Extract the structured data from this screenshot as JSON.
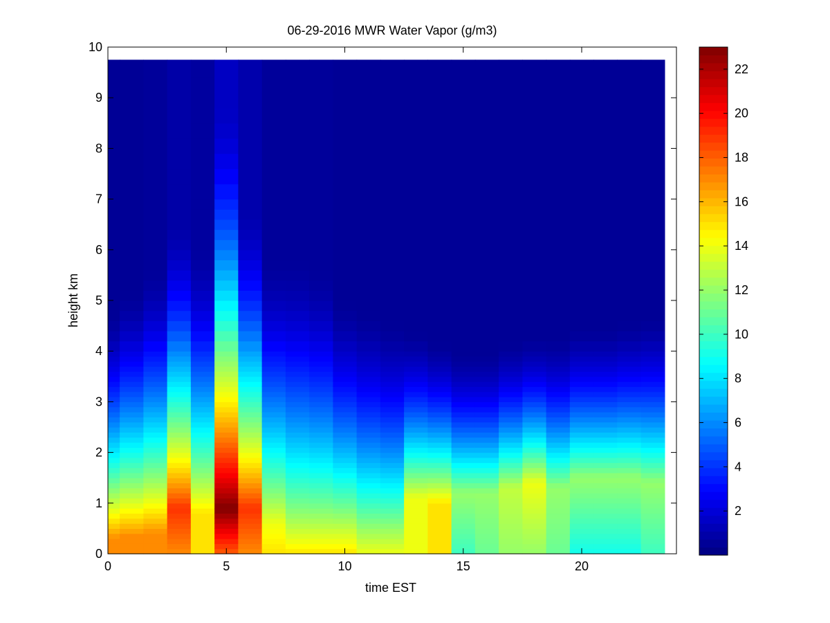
{
  "chart_data": {
    "type": "heatmap",
    "title": "06-29-2016 MWR Water Vapor (g/m3)",
    "xlabel": "time EST",
    "ylabel": "height km",
    "xlim": [
      0,
      24
    ],
    "ylim": [
      0,
      10
    ],
    "xticks": [
      0,
      5,
      10,
      15,
      20
    ],
    "yticks": [
      0,
      1,
      2,
      3,
      4,
      5,
      6,
      7,
      8,
      9,
      10
    ],
    "colorbar": {
      "range": [
        0,
        23
      ],
      "ticks": [
        2,
        4,
        6,
        8,
        10,
        12,
        14,
        16,
        18,
        20,
        22
      ],
      "colormap": "jet"
    },
    "time_bins": [
      0,
      1,
      2,
      3,
      4,
      5,
      6,
      7,
      8,
      9,
      10,
      11,
      12,
      13,
      14,
      15,
      16,
      17,
      18,
      19,
      20,
      21,
      22,
      23
    ],
    "height_bins_km": [
      0.0,
      0.1,
      0.2,
      0.3,
      0.4,
      0.5,
      0.6,
      0.7,
      0.8,
      0.9,
      1.0,
      1.1,
      1.2,
      1.3,
      1.4,
      1.5,
      1.6,
      1.7,
      1.8,
      1.9,
      2.0,
      2.1,
      2.2,
      2.3,
      2.4,
      2.5,
      2.6,
      2.7,
      2.8,
      2.9,
      3.0,
      3.1,
      3.2,
      3.3,
      3.4,
      3.5,
      3.6,
      3.7,
      3.8,
      3.9,
      4.0,
      4.2,
      4.4,
      4.6,
      4.8,
      5.0,
      5.2,
      5.4,
      5.6,
      5.8,
      6.0,
      6.2,
      6.4,
      6.6,
      6.8,
      7.0,
      7.3,
      7.6,
      7.9,
      8.2,
      8.5,
      8.8,
      9.1,
      9.4,
      9.75
    ],
    "profiles": [
      {
        "t": 0,
        "surface": 17,
        "peak_h": 0.3,
        "peak": 17,
        "zero_h": 4.8,
        "top": 0.5
      },
      {
        "t": 1,
        "surface": 17,
        "peak_h": 0.35,
        "peak": 17,
        "zero_h": 5.2,
        "top": 0.5
      },
      {
        "t": 2,
        "surface": 17,
        "peak_h": 0.4,
        "peak": 17,
        "zero_h": 5.6,
        "top": 0.6
      },
      {
        "t": 3,
        "surface": 17,
        "peak_h": 0.9,
        "peak": 19,
        "zero_h": 6.5,
        "top": 0.9
      },
      {
        "t": 4,
        "surface": 15,
        "peak_h": 0.8,
        "peak": 15,
        "zero_h": 6.0,
        "top": 0.7
      },
      {
        "t": 5,
        "surface": 18,
        "peak_h": 0.9,
        "peak": 23,
        "zero_h": 8.8,
        "top": 1.5
      },
      {
        "t": 6,
        "surface": 17,
        "peak_h": 0.9,
        "peak": 19,
        "zero_h": 6.8,
        "top": 1.0
      },
      {
        "t": 7,
        "surface": 15,
        "peak_h": 0.6,
        "peak": 14,
        "zero_h": 5.8,
        "top": 0.6
      },
      {
        "t": 8,
        "surface": 15,
        "peak_h": 0.5,
        "peak": 13,
        "zero_h": 5.8,
        "top": 0.6
      },
      {
        "t": 9,
        "surface": 15,
        "peak_h": 0.5,
        "peak": 13,
        "zero_h": 5.6,
        "top": 0.6
      },
      {
        "t": 10,
        "surface": 15,
        "peak_h": 0.5,
        "peak": 13,
        "zero_h": 5.0,
        "top": 0.5
      },
      {
        "t": 11,
        "surface": 14,
        "peak_h": 0.5,
        "peak": 12,
        "zero_h": 4.8,
        "top": 0.5
      },
      {
        "t": 12,
        "surface": 14,
        "peak_h": 0.5,
        "peak": 12,
        "zero_h": 4.6,
        "top": 0.5
      },
      {
        "t": 13,
        "surface": 14,
        "peak_h": 1.1,
        "peak": 14,
        "zero_h": 4.4,
        "top": 0.5
      },
      {
        "t": 14,
        "surface": 15,
        "peak_h": 1.0,
        "peak": 15,
        "zero_h": 4.2,
        "top": 0.5
      },
      {
        "t": 15,
        "surface": 10,
        "peak_h": 1.2,
        "peak": 12,
        "zero_h": 4.0,
        "top": 0.5
      },
      {
        "t": 16,
        "surface": 11,
        "peak_h": 1.2,
        "peak": 12,
        "zero_h": 4.0,
        "top": 0.5
      },
      {
        "t": 17,
        "surface": 12,
        "peak_h": 1.3,
        "peak": 13,
        "zero_h": 4.2,
        "top": 0.5
      },
      {
        "t": 18,
        "surface": 12,
        "peak_h": 1.4,
        "peak": 14,
        "zero_h": 4.3,
        "top": 0.5
      },
      {
        "t": 19,
        "surface": 11,
        "peak_h": 1.3,
        "peak": 12,
        "zero_h": 4.3,
        "top": 0.5
      },
      {
        "t": 20,
        "surface": 9,
        "peak_h": 1.5,
        "peak": 12,
        "zero_h": 4.5,
        "top": 0.5
      },
      {
        "t": 21,
        "surface": 9,
        "peak_h": 1.5,
        "peak": 12,
        "zero_h": 4.5,
        "top": 0.5
      },
      {
        "t": 22,
        "surface": 9,
        "peak_h": 1.5,
        "peak": 12,
        "zero_h": 4.6,
        "top": 0.5
      },
      {
        "t": 23,
        "surface": 10,
        "peak_h": 1.4,
        "peak": 12,
        "zero_h": 4.7,
        "top": 0.5
      }
    ]
  }
}
